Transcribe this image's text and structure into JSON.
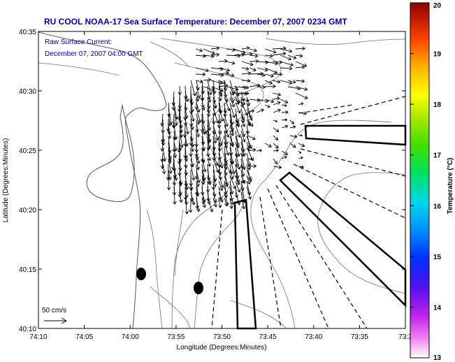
{
  "title": "RU COOL  NOAA-17  Sea Surface Temperature:  December 07, 2007 0234 GMT",
  "annotation": {
    "line1": "Raw Surface Current:",
    "line2": "December 07, 2007 04:00 GMT"
  },
  "scale_label": "50 cm/s",
  "x_axis": {
    "label": "Longitude (Degrees:Minutes)",
    "ticks": [
      "74:10",
      "74:05",
      "74:00",
      "73:55",
      "73:50",
      "73:45",
      "73:40",
      "73:35",
      "73:3"
    ]
  },
  "y_axis": {
    "label": "Latitude (Degrees:Minutes)",
    "ticks": [
      "40:35",
      "40:30",
      "40:25",
      "40:20",
      "40:15",
      "40:10"
    ]
  },
  "colorbar": {
    "label": "Temperature (°C)",
    "ticks": [
      "20",
      "19",
      "18",
      "17",
      "16",
      "15",
      "14",
      "13"
    ],
    "min": 13,
    "max": 20
  },
  "colors": {
    "title": "#000099",
    "text": "#000000",
    "contour": "#707070"
  }
}
